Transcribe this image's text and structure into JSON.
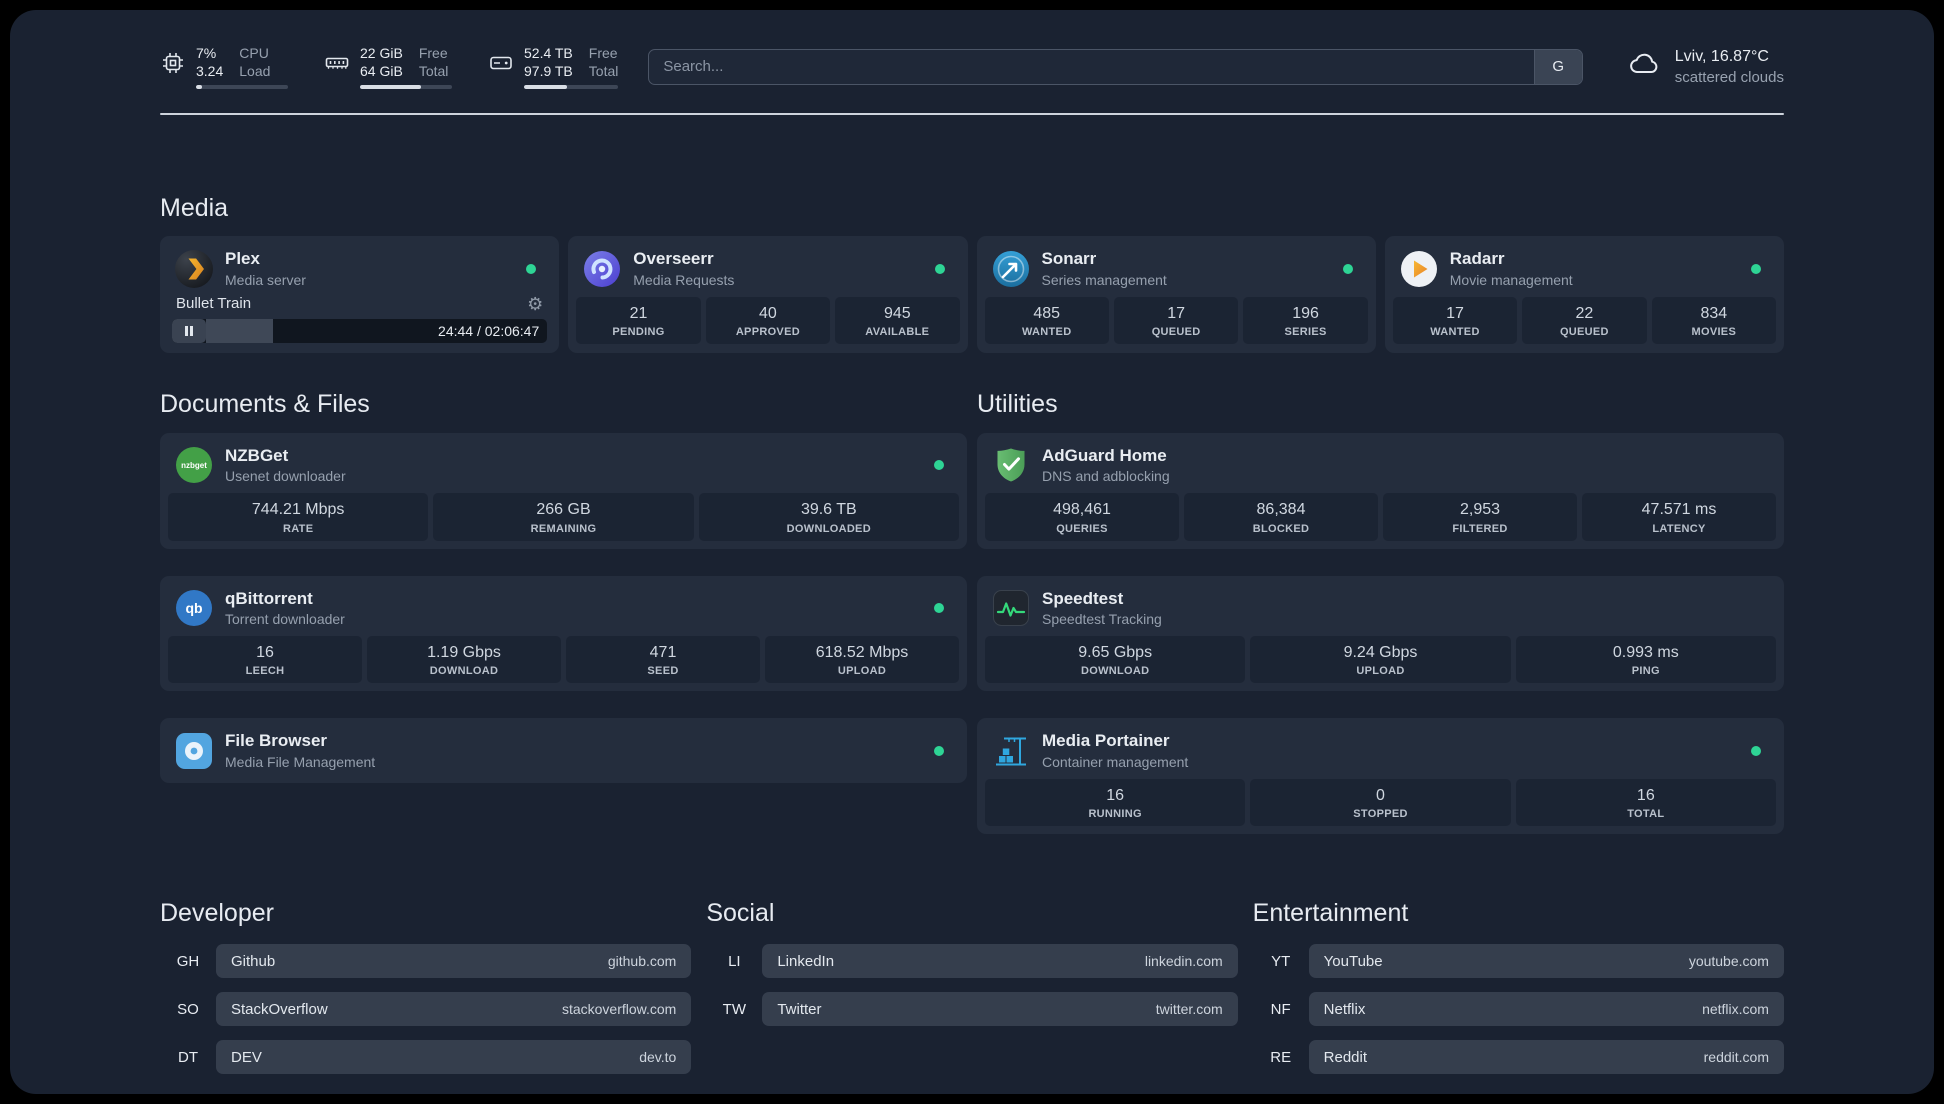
{
  "header": {
    "cpu": {
      "percent": "7%",
      "load": "3.24",
      "top_label": "CPU",
      "bottom_label": "Load",
      "bar_percent": 7
    },
    "memory": {
      "free": "22 GiB",
      "total": "64 GiB",
      "top_label": "Free",
      "bottom_label": "Total",
      "bar_percent": 66
    },
    "disk": {
      "free": "52.4 TB",
      "total": "97.9 TB",
      "top_label": "Free",
      "bottom_label": "Total",
      "bar_percent": 46
    },
    "search": {
      "placeholder": "Search...",
      "provider_button": "G"
    },
    "weather": {
      "location": "Lviv, 16.87°C",
      "condition": "scattered clouds"
    }
  },
  "groups": {
    "media": {
      "title": "Media",
      "cards": [
        {
          "name": "Plex",
          "description": "Media server",
          "status": "online",
          "player": {
            "title": "Bullet Train",
            "time": "24:44 / 02:06:47",
            "progress_percent": 19.5
          }
        },
        {
          "name": "Overseerr",
          "description": "Media Requests",
          "status": "online",
          "stats": [
            {
              "value": "21",
              "label": "PENDING"
            },
            {
              "value": "40",
              "label": "APPROVED"
            },
            {
              "value": "945",
              "label": "AVAILABLE"
            }
          ]
        },
        {
          "name": "Sonarr",
          "description": "Series management",
          "status": "online",
          "stats": [
            {
              "value": "485",
              "label": "WANTED"
            },
            {
              "value": "17",
              "label": "QUEUED"
            },
            {
              "value": "196",
              "label": "SERIES"
            }
          ]
        },
        {
          "name": "Radarr",
          "description": "Movie management",
          "status": "online",
          "stats": [
            {
              "value": "17",
              "label": "WANTED"
            },
            {
              "value": "22",
              "label": "QUEUED"
            },
            {
              "value": "834",
              "label": "MOVIES"
            }
          ]
        }
      ]
    },
    "documents": {
      "title": "Documents & Files",
      "cards": [
        {
          "name": "NZBGet",
          "description": "Usenet downloader",
          "status": "online",
          "stats": [
            {
              "value": "744.21 Mbps",
              "label": "RATE"
            },
            {
              "value": "266 GB",
              "label": "REMAINING"
            },
            {
              "value": "39.6 TB",
              "label": "DOWNLOADED"
            }
          ]
        },
        {
          "name": "qBittorrent",
          "description": "Torrent downloader",
          "status": "online",
          "stats": [
            {
              "value": "16",
              "label": "LEECH"
            },
            {
              "value": "1.19 Gbps",
              "label": "DOWNLOAD"
            },
            {
              "value": "471",
              "label": "SEED"
            },
            {
              "value": "618.52 Mbps",
              "label": "UPLOAD"
            }
          ]
        },
        {
          "name": "File Browser",
          "description": "Media File Management",
          "status": "online",
          "stats": []
        }
      ]
    },
    "utilities": {
      "title": "Utilities",
      "cards": [
        {
          "name": "AdGuard Home",
          "description": "DNS and adblocking",
          "stats": [
            {
              "value": "498,461",
              "label": "QUERIES"
            },
            {
              "value": "86,384",
              "label": "BLOCKED"
            },
            {
              "value": "2,953",
              "label": "FILTERED"
            },
            {
              "value": "47.571 ms",
              "label": "LATENCY"
            }
          ]
        },
        {
          "name": "Speedtest",
          "description": "Speedtest Tracking",
          "stats": [
            {
              "value": "9.65 Gbps",
              "label": "DOWNLOAD"
            },
            {
              "value": "9.24 Gbps",
              "label": "UPLOAD"
            },
            {
              "value": "0.993 ms",
              "label": "PING"
            }
          ]
        },
        {
          "name": "Media Portainer",
          "description": "Container management",
          "status": "online",
          "stats": [
            {
              "value": "16",
              "label": "RUNNING"
            },
            {
              "value": "0",
              "label": "STOPPED"
            },
            {
              "value": "16",
              "label": "TOTAL"
            }
          ]
        }
      ]
    }
  },
  "bookmarks": {
    "developer": {
      "title": "Developer",
      "items": [
        {
          "abbr": "GH",
          "name": "Github",
          "url": "github.com"
        },
        {
          "abbr": "SO",
          "name": "StackOverflow",
          "url": "stackoverflow.com"
        },
        {
          "abbr": "DT",
          "name": "DEV",
          "url": "dev.to"
        }
      ]
    },
    "social": {
      "title": "Social",
      "items": [
        {
          "abbr": "LI",
          "name": "LinkedIn",
          "url": "linkedin.com"
        },
        {
          "abbr": "TW",
          "name": "Twitter",
          "url": "twitter.com"
        }
      ]
    },
    "entertainment": {
      "title": "Entertainment",
      "items": [
        {
          "abbr": "YT",
          "name": "YouTube",
          "url": "youtube.com"
        },
        {
          "abbr": "NF",
          "name": "Netflix",
          "url": "netflix.com"
        },
        {
          "abbr": "RE",
          "name": "Reddit",
          "url": "reddit.com"
        }
      ]
    }
  }
}
